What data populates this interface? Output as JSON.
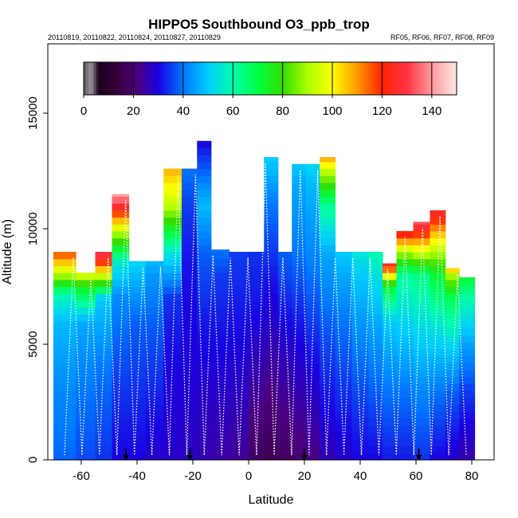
{
  "chart_data": {
    "type": "heatmap",
    "title": "HIPPO5 Southbound O3_ppb_trop",
    "dates_label": "20110819, 20110822, 20110824, 20110827, 20110829",
    "flights_label": "RF05, RF06, RF07, RF08, RF09",
    "xlabel": "Latitude",
    "ylabel": "Altitude (m)",
    "xlim": [
      -72,
      88
    ],
    "ylim": [
      0,
      18000
    ],
    "x_ticks": [
      -60,
      -40,
      -20,
      0,
      20,
      40,
      60,
      80
    ],
    "x_tick_labels": [
      "-60",
      "-40",
      "-20",
      "0",
      "20",
      "40",
      "60",
      "80"
    ],
    "y_ticks": [
      0,
      5000,
      10000,
      15000
    ],
    "y_tick_labels": [
      "0",
      "5000",
      "10000",
      "15000"
    ],
    "colorbar": {
      "range": [
        0,
        150
      ],
      "ticks": [
        0,
        20,
        40,
        60,
        80,
        100,
        120,
        140
      ],
      "tick_labels": [
        "0",
        "20",
        "40",
        "60",
        "80",
        "100",
        "120",
        "140"
      ],
      "stops": [
        {
          "value": 0,
          "color": "#555555"
        },
        {
          "value": 3,
          "color": "#999999"
        },
        {
          "value": 6,
          "color": "#1a001a"
        },
        {
          "value": 14,
          "color": "#3a0040"
        },
        {
          "value": 22,
          "color": "#4b0082"
        },
        {
          "value": 30,
          "color": "#1a00e0"
        },
        {
          "value": 40,
          "color": "#0077ff"
        },
        {
          "value": 50,
          "color": "#00ccff"
        },
        {
          "value": 60,
          "color": "#00ffaa"
        },
        {
          "value": 70,
          "color": "#00ff44"
        },
        {
          "value": 80,
          "color": "#33dd00"
        },
        {
          "value": 90,
          "color": "#aaff00"
        },
        {
          "value": 100,
          "color": "#ffff00"
        },
        {
          "value": 110,
          "color": "#ff9900"
        },
        {
          "value": 120,
          "color": "#ff2200"
        },
        {
          "value": 130,
          "color": "#ff3344"
        },
        {
          "value": 140,
          "color": "#ff9999"
        },
        {
          "value": 150,
          "color": "#ffe6e6"
        }
      ]
    },
    "columns": [
      {
        "lat": -66,
        "top": 9000,
        "profile": [
          [
            0,
            38
          ],
          [
            1000,
            40
          ],
          [
            3000,
            42
          ],
          [
            6000,
            48
          ],
          [
            7200,
            60
          ],
          [
            8000,
            90
          ],
          [
            9000,
            118
          ]
        ]
      },
      {
        "lat": -58,
        "top": 8100,
        "profile": [
          [
            0,
            36
          ],
          [
            3000,
            40
          ],
          [
            6000,
            46
          ],
          [
            7500,
            75
          ],
          [
            8100,
            100
          ]
        ]
      },
      {
        "lat": -52,
        "top": 9000,
        "profile": [
          [
            0,
            34
          ],
          [
            4000,
            40
          ],
          [
            7000,
            50
          ],
          [
            8000,
            95
          ],
          [
            8800,
            128
          ],
          [
            9500,
            145
          ]
        ]
      },
      {
        "lat": -46,
        "top": 11500,
        "profile": [
          [
            0,
            30
          ],
          [
            4000,
            36
          ],
          [
            7000,
            42
          ],
          [
            8500,
            55
          ],
          [
            10000,
            95
          ],
          [
            11000,
            128
          ],
          [
            11500,
            142
          ]
        ]
      },
      {
        "lat": -40,
        "top": 8600,
        "profile": [
          [
            0,
            30
          ],
          [
            3000,
            34
          ],
          [
            6000,
            38
          ],
          [
            8000,
            48
          ],
          [
            8600,
            52
          ]
        ]
      },
      {
        "lat": -34,
        "top": 8600,
        "profile": [
          [
            0,
            28
          ],
          [
            3000,
            33
          ],
          [
            6000,
            38
          ],
          [
            8000,
            44
          ],
          [
            8600,
            48
          ]
        ]
      },
      {
        "lat": -27,
        "top": 12600,
        "profile": [
          [
            0,
            28
          ],
          [
            4000,
            30
          ],
          [
            7000,
            34
          ],
          [
            9000,
            55
          ],
          [
            11000,
            92
          ],
          [
            12600,
            108
          ]
        ]
      },
      {
        "lat": -21,
        "top": 12600,
        "profile": [
          [
            0,
            27
          ],
          [
            3000,
            29
          ],
          [
            6000,
            30
          ],
          [
            9000,
            32
          ],
          [
            11000,
            35
          ],
          [
            12600,
            40
          ]
        ]
      },
      {
        "lat": -16,
        "top": 13800,
        "profile": [
          [
            0,
            26
          ],
          [
            3000,
            28
          ],
          [
            6000,
            32
          ],
          [
            9000,
            38
          ],
          [
            11000,
            48
          ],
          [
            13800,
            30
          ]
        ]
      },
      {
        "lat": -11,
        "top": 9100,
        "profile": [
          [
            0,
            25
          ],
          [
            3000,
            28
          ],
          [
            6000,
            32
          ],
          [
            8000,
            35
          ],
          [
            9100,
            40
          ]
        ]
      },
      {
        "lat": -3,
        "top": 9000,
        "profile": [
          [
            0,
            24
          ],
          [
            2000,
            26
          ],
          [
            5000,
            30
          ],
          [
            8000,
            34
          ],
          [
            9000,
            35
          ]
        ]
      },
      {
        "lat": 3,
        "top": 9000,
        "profile": [
          [
            0,
            18
          ],
          [
            2000,
            22
          ],
          [
            4000,
            26
          ],
          [
            7000,
            32
          ],
          [
            9000,
            34
          ]
        ]
      },
      {
        "lat": 8,
        "top": 13100,
        "profile": [
          [
            0,
            16
          ],
          [
            2000,
            20
          ],
          [
            5000,
            26
          ],
          [
            8000,
            32
          ],
          [
            11000,
            40
          ],
          [
            13000,
            50
          ]
        ]
      },
      {
        "lat": 13,
        "top": 9000,
        "profile": [
          [
            0,
            18
          ],
          [
            2000,
            22
          ],
          [
            5000,
            28
          ],
          [
            8000,
            36
          ],
          [
            9000,
            38
          ]
        ]
      },
      {
        "lat": 18,
        "top": 12800,
        "profile": [
          [
            0,
            20
          ],
          [
            3000,
            26
          ],
          [
            6000,
            32
          ],
          [
            9000,
            40
          ],
          [
            12000,
            46
          ],
          [
            12800,
            50
          ]
        ]
      },
      {
        "lat": 23,
        "top": 12800,
        "profile": [
          [
            0,
            22
          ],
          [
            3000,
            28
          ],
          [
            6000,
            35
          ],
          [
            9000,
            42
          ],
          [
            12000,
            48
          ],
          [
            12800,
            52
          ]
        ]
      },
      {
        "lat": 28,
        "top": 13100,
        "profile": [
          [
            0,
            26
          ],
          [
            3000,
            32
          ],
          [
            6000,
            38
          ],
          [
            9000,
            46
          ],
          [
            11000,
            62
          ],
          [
            12500,
            92
          ],
          [
            13100,
            110
          ]
        ]
      },
      {
        "lat": 34,
        "top": 9000,
        "profile": [
          [
            0,
            28
          ],
          [
            3000,
            34
          ],
          [
            6000,
            40
          ],
          [
            8000,
            46
          ],
          [
            9000,
            50
          ]
        ]
      },
      {
        "lat": 40,
        "top": 9000,
        "profile": [
          [
            0,
            30
          ],
          [
            3000,
            36
          ],
          [
            6000,
            44
          ],
          [
            8000,
            50
          ],
          [
            9000,
            55
          ]
        ]
      },
      {
        "lat": 46,
        "top": 9000,
        "profile": [
          [
            0,
            30
          ],
          [
            3000,
            38
          ],
          [
            6000,
            46
          ],
          [
            8000,
            54
          ],
          [
            9000,
            60
          ]
        ]
      },
      {
        "lat": 50,
        "top": 8500,
        "profile": [
          [
            0,
            32
          ],
          [
            3000,
            40
          ],
          [
            6000,
            50
          ],
          [
            7500,
            72
          ],
          [
            8500,
            128
          ]
        ]
      },
      {
        "lat": 56,
        "top": 9900,
        "profile": [
          [
            0,
            32
          ],
          [
            3000,
            40
          ],
          [
            6000,
            52
          ],
          [
            8000,
            62
          ],
          [
            9000,
            90
          ],
          [
            9900,
            128
          ]
        ]
      },
      {
        "lat": 62,
        "top": 10300,
        "profile": [
          [
            0,
            34
          ],
          [
            3000,
            42
          ],
          [
            6000,
            54
          ],
          [
            8000,
            64
          ],
          [
            9500,
            110
          ],
          [
            10300,
            135
          ]
        ]
      },
      {
        "lat": 68,
        "top": 10800,
        "profile": [
          [
            0,
            30
          ],
          [
            3000,
            40
          ],
          [
            6000,
            56
          ],
          [
            8000,
            72
          ],
          [
            9500,
            100
          ],
          [
            10800,
            128
          ]
        ]
      },
      {
        "lat": 73,
        "top": 8300,
        "profile": [
          [
            0,
            28
          ],
          [
            3000,
            38
          ],
          [
            5000,
            52
          ],
          [
            7000,
            68
          ],
          [
            8000,
            90
          ],
          [
            8300,
            110
          ]
        ]
      },
      {
        "lat": 78,
        "top": 7900,
        "profile": [
          [
            0,
            25
          ],
          [
            3000,
            35
          ],
          [
            5000,
            45
          ],
          [
            7000,
            60
          ],
          [
            7900,
            72
          ]
        ]
      }
    ],
    "flight_markers_lat": [
      -44,
      -21,
      20,
      61
    ]
  }
}
